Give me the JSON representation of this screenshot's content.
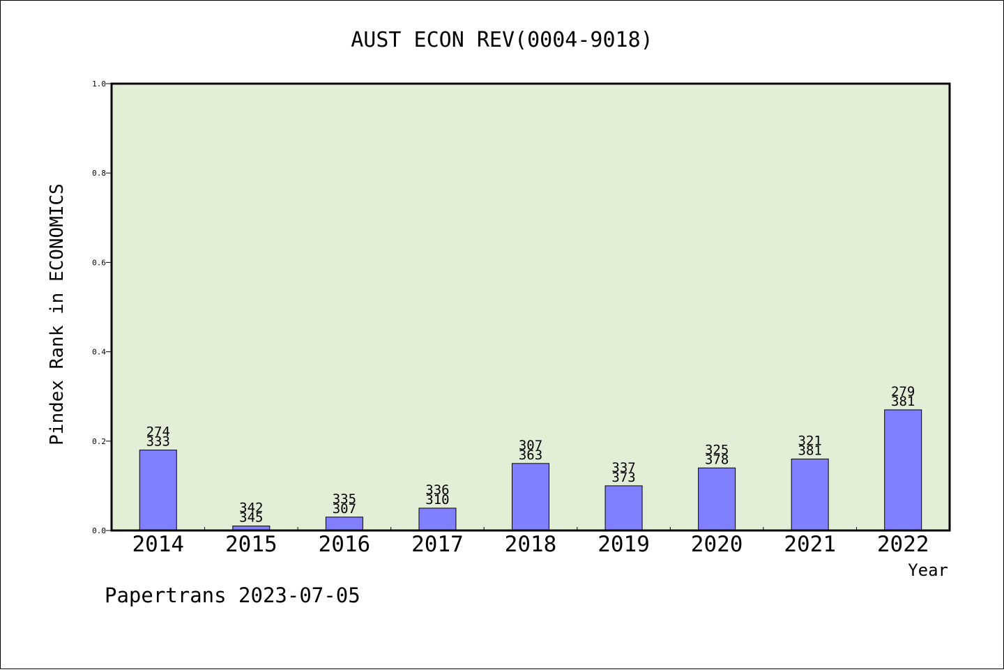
{
  "chart_data": {
    "type": "bar",
    "title": "AUST ECON REV(0004-9018)",
    "xlabel": "Year",
    "ylabel": "Pindex Rank in ECONOMICS",
    "ylim": [
      0.0,
      1.0
    ],
    "yticks": [
      "0.0",
      "0.2",
      "0.4",
      "0.6",
      "0.8",
      "1.0"
    ],
    "categories": [
      "2014",
      "2015",
      "2016",
      "2017",
      "2018",
      "2019",
      "2020",
      "2021",
      "2022"
    ],
    "values": [
      0.18,
      0.01,
      0.03,
      0.05,
      0.15,
      0.1,
      0.14,
      0.16,
      0.27
    ],
    "label_top": [
      "274",
      "342",
      "335",
      "336",
      "307",
      "337",
      "325",
      "321",
      "279"
    ],
    "label_bottom": [
      "333",
      "345",
      "307",
      "310",
      "363",
      "373",
      "378",
      "381",
      "381"
    ],
    "plot_background": "#e2efd6",
    "bar_color": "#8080ff",
    "grid": false
  },
  "footer": "Papertrans 2023-07-05"
}
